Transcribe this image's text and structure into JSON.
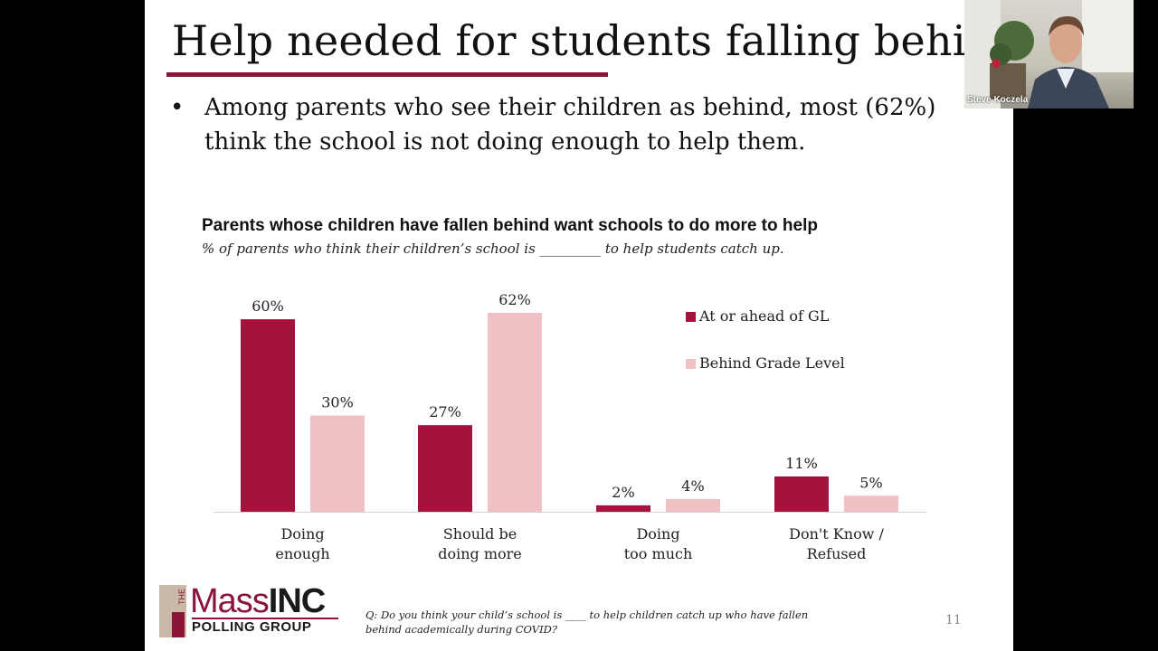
{
  "slide": {
    "title": "Help needed for students falling behind",
    "bullet": "Among parents who see their children as behind, most (62%) think the school is not doing enough to help them.",
    "page_number": "11",
    "footnote": "Q: Do you think your child’s school is ____ to help children catch up who have fallen behind academically during COVID?"
  },
  "logo": {
    "small": "THE",
    "main_left": "Mass",
    "main_right": "INC",
    "sub": "POLLING GROUP"
  },
  "video": {
    "participant_name": "Steve Koczela"
  },
  "chart_data": {
    "type": "bar",
    "title": "Parents whose children have fallen behind want schools to do more to help",
    "subtitle": "% of parents who think their children’s school is _________ to help students catch up.",
    "categories": [
      "Doing\nenough",
      "Should be\ndoing more",
      "Doing\ntoo much",
      "Don't Know /\nRefused"
    ],
    "series": [
      {
        "name": "At or ahead of GL",
        "values": [
          60,
          27,
          2,
          11
        ],
        "labels": [
          "60%",
          "27%",
          "2%",
          "11%"
        ],
        "color": "#a5133d"
      },
      {
        "name": "Behind Grade Level",
        "values": [
          30,
          62,
          4,
          5
        ],
        "labels": [
          "30%",
          "62%",
          "4%",
          "5%"
        ],
        "color": "#efc1c4"
      }
    ],
    "ylim": [
      0,
      62
    ],
    "legend_position": "top-right",
    "grid": false
  }
}
